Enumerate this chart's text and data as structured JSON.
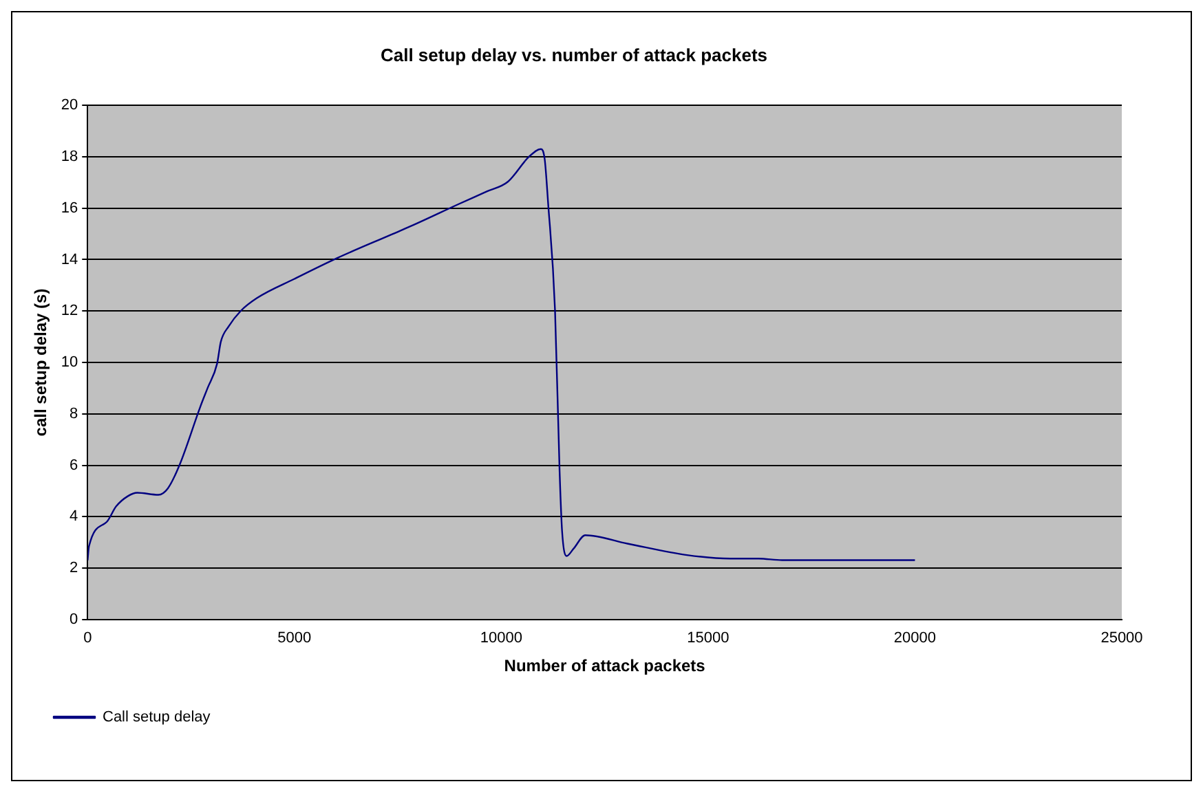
{
  "chart_data": {
    "type": "line",
    "title": "Call setup delay vs. number of attack packets",
    "xlabel": "Number of attack packets",
    "ylabel": "call setup delay (s)",
    "xlim": [
      0,
      25000
    ],
    "xticks": [
      0,
      5000,
      10000,
      15000,
      20000,
      25000
    ],
    "ylim": [
      0,
      20
    ],
    "yticks": [
      0,
      2,
      4,
      6,
      8,
      10,
      12,
      14,
      16,
      18,
      20
    ],
    "grid": "y",
    "legend": "bottom left",
    "marker": "none",
    "line_style": "solid",
    "series": [
      {
        "name": "Call setup delay",
        "color": "#000080",
        "x": [
          0,
          34,
          465,
          690,
          975,
          1200,
          1710,
          1940,
          2220,
          2730,
          2900,
          3130,
          3220,
          3410,
          3700,
          4090,
          5000,
          6020,
          7380,
          7950,
          8970,
          9650,
          10160,
          10670,
          10960,
          11050,
          11130,
          11300,
          11410,
          11470,
          11580,
          11750,
          12030,
          13050,
          14520,
          15540,
          16220,
          16790,
          20000
        ],
        "values": [
          2.3,
          2.85,
          3.8,
          4.4,
          4.8,
          4.93,
          4.85,
          5.1,
          6.0,
          8.3,
          9.0,
          9.95,
          10.8,
          11.4,
          12.0,
          12.5,
          13.25,
          14.05,
          15.0,
          15.4,
          16.16,
          16.65,
          17.03,
          18.0,
          18.3,
          17.9,
          16.25,
          12.0,
          5.77,
          3.44,
          2.47,
          2.76,
          3.28,
          2.95,
          2.5,
          2.37,
          2.37,
          2.31,
          2.31
        ]
      }
    ]
  }
}
